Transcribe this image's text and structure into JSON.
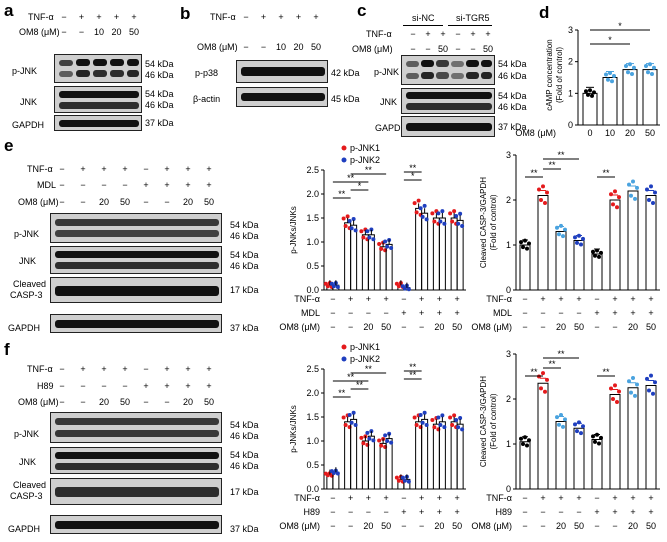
{
  "panels": {
    "a": "a",
    "b": "b",
    "c": "c",
    "d": "d",
    "e": "e",
    "f": "f"
  },
  "common": {
    "tnf": "TNF-α",
    "om8": "OM8 (μM)",
    "minus": "−",
    "plus": "+",
    "v10": "10",
    "v20": "20",
    "v50": "50",
    "zero": "0",
    "mdl": "MDL",
    "h89": "H89"
  },
  "a": {
    "cond": {
      "tnf": [
        "−",
        "+",
        "+",
        "+",
        "+"
      ],
      "om8": [
        "−",
        "−",
        "10",
        "20",
        "50"
      ]
    },
    "rows": [
      "p-JNK",
      "JNK",
      "GAPDH"
    ],
    "kda": [
      "54 kDa",
      "46 kDa",
      "54 kDa",
      "46 kDa",
      "37 kDa"
    ]
  },
  "b": {
    "cond": {
      "tnf": [
        "−",
        "+",
        "+",
        "+",
        "+"
      ],
      "om8": [
        "−",
        "−",
        "10",
        "20",
        "50"
      ]
    },
    "rows": [
      "p-p38",
      "β-actin"
    ],
    "kda": [
      "42 kDa",
      "45 kDa"
    ]
  },
  "c": {
    "groups": [
      "si-NC",
      "si-TGR5"
    ],
    "cond": {
      "tnf": [
        "−",
        "+",
        "+",
        "−",
        "+",
        "+"
      ],
      "om8": [
        "−",
        "−",
        "50",
        "−",
        "−",
        "50"
      ]
    },
    "rows": [
      "p-JNK",
      "JNK",
      "GAPDH"
    ],
    "kda": [
      "54 kDa",
      "46 kDa",
      "54 kDa",
      "46 kDa",
      "37 kDa"
    ]
  },
  "e": {
    "cond": {
      "tnf": [
        "−",
        "+",
        "+",
        "+",
        "−",
        "+",
        "+",
        "+"
      ],
      "mdl": [
        "−",
        "−",
        "−",
        "−",
        "+",
        "+",
        "+",
        "+"
      ],
      "om8": [
        "−",
        "−",
        "20",
        "50",
        "−",
        "−",
        "20",
        "50"
      ]
    },
    "rows": [
      "p-JNK",
      "JNK",
      "Cleaved",
      "CASP-3",
      "GAPDH"
    ],
    "kda": [
      "54 kDa",
      "46 kDa",
      "54 kDa",
      "46 kDa",
      "17 kDa",
      "37 kDa"
    ]
  },
  "f": {
    "cond": {
      "tnf": [
        "−",
        "+",
        "+",
        "+",
        "−",
        "+",
        "+",
        "+"
      ],
      "h89": [
        "−",
        "−",
        "−",
        "−",
        "+",
        "+",
        "+",
        "+"
      ],
      "om8": [
        "−",
        "−",
        "20",
        "50",
        "−",
        "−",
        "20",
        "50"
      ]
    },
    "rows": [
      "p-JNK",
      "JNK",
      "Cleaved",
      "CASP-3",
      "GAPDH"
    ],
    "kda": [
      "54 kDa",
      "46 kDa",
      "54 kDa",
      "46 kDa",
      "17 kDa",
      "37 kDa"
    ]
  },
  "chart_data": [
    {
      "id": "d",
      "type": "bar",
      "title": "",
      "ylabel": "cAMP concentration",
      "ylabel2": "(Fold of control)",
      "xlabel": "OM8 (μM)",
      "categories": [
        "0",
        "10",
        "20",
        "50"
      ],
      "values": [
        1.0,
        1.5,
        1.75,
        1.75
      ],
      "ylim": [
        0,
        3
      ],
      "yticks": [
        "0",
        "1",
        "2",
        "3"
      ],
      "sig": [
        "*",
        "*"
      ],
      "colors": {
        "ctrl": "#000000",
        "treat": "#4aa3df"
      }
    },
    {
      "id": "e1",
      "type": "bar",
      "ylabel": "p-JNKs/JNKs",
      "legend": [
        "p-JNK1",
        "p-JNK2"
      ],
      "legend_colors": [
        "#e41a1c",
        "#1f3fbf"
      ],
      "groups": 8,
      "series": [
        {
          "name": "p-JNK1",
          "values": [
            0.1,
            1.4,
            1.15,
            0.9,
            0.1,
            1.7,
            1.5,
            1.5
          ]
        },
        {
          "name": "p-JNK2",
          "values": [
            0.1,
            1.35,
            1.15,
            0.95,
            0.05,
            1.6,
            1.5,
            1.45
          ]
        }
      ],
      "ylim": [
        0,
        2.5
      ],
      "yticks": [
        "0.0",
        "0.5",
        "1.0",
        "1.5",
        "2.0",
        "2.5"
      ],
      "sig": [
        "**",
        "**",
        "*",
        "**",
        "*",
        "**"
      ]
    },
    {
      "id": "e2",
      "type": "bar",
      "ylabel": "Cleaved CASP-3/GAPDH",
      "ylabel2": "(Fold of control)",
      "values": [
        1.0,
        2.1,
        1.3,
        1.1,
        0.8,
        2.0,
        2.2,
        2.1
      ],
      "ylim": [
        0,
        3
      ],
      "yticks": [
        "0",
        "1",
        "2",
        "3"
      ],
      "sig": [
        "**",
        "**",
        "**",
        "**"
      ],
      "colors": [
        "#000000",
        "#e41a1c",
        "#4aa3df",
        "#1f3fbf",
        "#000000",
        "#e41a1c",
        "#4aa3df",
        "#1f3fbf"
      ]
    },
    {
      "id": "f1",
      "type": "bar",
      "ylabel": "p-JNKs/JNKs",
      "legend": [
        "p-JNK1",
        "p-JNK2"
      ],
      "legend_colors": [
        "#e41a1c",
        "#1f3fbf"
      ],
      "groups": 8,
      "series": [
        {
          "name": "p-JNK1",
          "values": [
            0.3,
            1.4,
            1.0,
            0.95,
            0.2,
            1.4,
            1.35,
            1.4
          ]
        },
        {
          "name": "p-JNK2",
          "values": [
            0.35,
            1.45,
            1.1,
            1.05,
            0.2,
            1.45,
            1.4,
            1.35
          ]
        }
      ],
      "ylim": [
        0,
        2.5
      ],
      "yticks": [
        "0.0",
        "0.5",
        "1.0",
        "1.5",
        "2.0",
        "2.5"
      ],
      "sig": [
        "**",
        "**",
        "**",
        "**",
        "**",
        "**"
      ]
    },
    {
      "id": "f2",
      "type": "bar",
      "ylabel": "Cleaved CASP-3/GAPDH",
      "ylabel2": "(Fold of control)",
      "values": [
        1.05,
        2.35,
        1.5,
        1.35,
        1.1,
        2.1,
        2.25,
        2.3
      ],
      "ylim": [
        0,
        3
      ],
      "yticks": [
        "0",
        "1",
        "2",
        "3"
      ],
      "sig": [
        "**",
        "**",
        "**",
        "**"
      ],
      "colors": [
        "#000000",
        "#e41a1c",
        "#4aa3df",
        "#1f3fbf",
        "#000000",
        "#e41a1c",
        "#4aa3df",
        "#1f3fbf"
      ]
    }
  ],
  "chart_conds": {
    "e": {
      "tnf": [
        "−",
        "+",
        "+",
        "+",
        "−",
        "+",
        "+",
        "+"
      ],
      "mdl": [
        "−",
        "−",
        "−",
        "−",
        "+",
        "+",
        "+",
        "+"
      ],
      "om8": [
        "−",
        "−",
        "20",
        "50",
        "−",
        "−",
        "20",
        "50"
      ]
    },
    "f": {
      "tnf": [
        "−",
        "+",
        "+",
        "+",
        "−",
        "+",
        "+",
        "+"
      ],
      "h89": [
        "−",
        "−",
        "−",
        "−",
        "+",
        "+",
        "+",
        "+"
      ],
      "om8": [
        "−",
        "−",
        "20",
        "50",
        "−",
        "−",
        "20",
        "50"
      ]
    }
  }
}
